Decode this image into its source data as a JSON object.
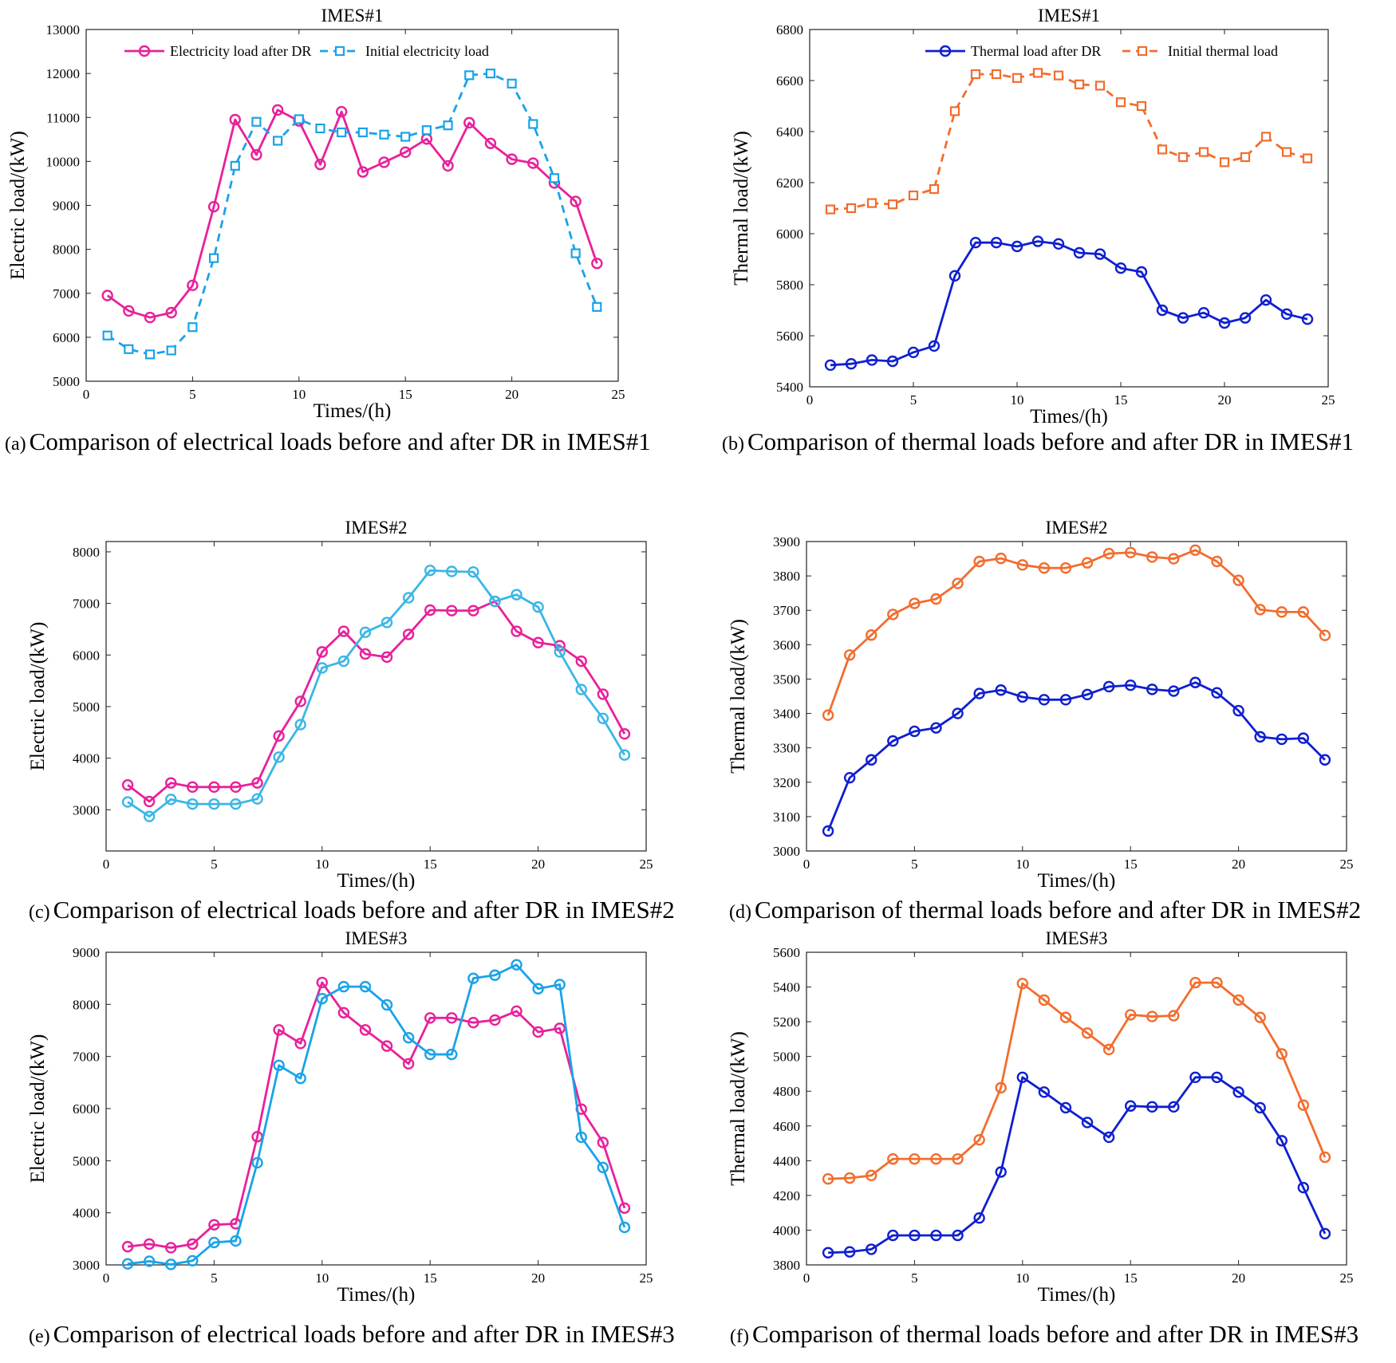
{
  "colors": {
    "pink": "#e8219a",
    "light_blue": "#1aa3e8",
    "sky_blue": "#3bb6e6",
    "navy": "#0f1fd0",
    "orange": "#f26d2e"
  },
  "chart_data": [
    {
      "id": "a",
      "type": "line",
      "title": "IMES#1",
      "xlabel": "Times/(h)",
      "ylabel": "Electric load/(kW)",
      "caption_tag": "(a)",
      "caption_text": "Comparison of electrical loads before and after DR in IMES#1",
      "xlim": [
        0,
        25
      ],
      "ylim": [
        5000,
        13000
      ],
      "xticks": [
        0,
        5,
        10,
        15,
        20,
        25
      ],
      "yticks": [
        5000,
        6000,
        7000,
        8000,
        9000,
        10000,
        11000,
        12000,
        13000
      ],
      "grid": false,
      "legend_position": "top",
      "x": [
        1,
        2,
        3,
        4,
        5,
        6,
        7,
        8,
        9,
        10,
        11,
        12,
        13,
        14,
        15,
        16,
        17,
        18,
        19,
        20,
        21,
        22,
        23,
        24
      ],
      "series": [
        {
          "name": "Electricity load after DR",
          "color": "#e8219a",
          "marker": "circle",
          "dash": false,
          "values": [
            6950,
            6600,
            6450,
            6560,
            7180,
            8970,
            10950,
            10150,
            11170,
            10920,
            9930,
            11130,
            9760,
            9980,
            10210,
            10510,
            9900,
            10880,
            10410,
            10050,
            9960,
            9510,
            9090,
            7680
          ]
        },
        {
          "name": "Initial electricity load",
          "color": "#1aa3e8",
          "marker": "square",
          "dash": true,
          "values": [
            6040,
            5730,
            5610,
            5700,
            6230,
            7800,
            9900,
            10900,
            10470,
            10960,
            10750,
            10660,
            10660,
            10610,
            10560,
            10710,
            10820,
            11960,
            12000,
            11770,
            10850,
            9620,
            7910,
            6690
          ]
        }
      ]
    },
    {
      "id": "b",
      "type": "line",
      "title": "IMES#1",
      "xlabel": "Times/(h)",
      "ylabel": "Thermal load/(kW)",
      "caption_tag": "(b)",
      "caption_text": "Comparison of thermal loads before and after DR in IMES#1",
      "xlim": [
        0,
        25
      ],
      "ylim": [
        5400,
        6800
      ],
      "xticks": [
        0,
        5,
        10,
        15,
        20,
        25
      ],
      "yticks": [
        5400,
        5600,
        5800,
        6000,
        6200,
        6400,
        6600,
        6800
      ],
      "grid": false,
      "legend_position": "top",
      "x": [
        1,
        2,
        3,
        4,
        5,
        6,
        7,
        8,
        9,
        10,
        11,
        12,
        13,
        14,
        15,
        16,
        17,
        18,
        19,
        20,
        21,
        22,
        23,
        24
      ],
      "series": [
        {
          "name": "Thermal load after DR",
          "color": "#0f1fd0",
          "marker": "circle",
          "dash": false,
          "values": [
            5485,
            5490,
            5505,
            5500,
            5535,
            5560,
            5835,
            5965,
            5965,
            5950,
            5970,
            5960,
            5925,
            5920,
            5865,
            5850,
            5700,
            5670,
            5690,
            5650,
            5670,
            5740,
            5685,
            5665
          ]
        },
        {
          "name": "Initial thermal load",
          "color": "#f26d2e",
          "marker": "square",
          "dash": true,
          "values": [
            6095,
            6100,
            6120,
            6115,
            6150,
            6175,
            6480,
            6625,
            6625,
            6610,
            6630,
            6620,
            6585,
            6580,
            6515,
            6500,
            6330,
            6300,
            6320,
            6280,
            6300,
            6380,
            6320,
            6295
          ]
        }
      ]
    },
    {
      "id": "c",
      "type": "line",
      "title": "IMES#2",
      "xlabel": "Times/(h)",
      "ylabel": "Electric load/(kW)",
      "caption_tag": "(c)",
      "caption_text": "Comparison of electrical loads before and after DR in IMES#2",
      "xlim": [
        0,
        25
      ],
      "ylim": [
        2200,
        8200
      ],
      "xticks": [
        0,
        5,
        10,
        15,
        20,
        25
      ],
      "yticks": [
        3000,
        4000,
        5000,
        6000,
        7000,
        8000
      ],
      "grid": false,
      "x": [
        1,
        2,
        3,
        4,
        5,
        6,
        7,
        8,
        9,
        10,
        11,
        12,
        13,
        14,
        15,
        16,
        17,
        18,
        19,
        20,
        21,
        22,
        23,
        24
      ],
      "series": [
        {
          "color": "#e8219a",
          "marker": "circle",
          "dash": false,
          "values": [
            3480,
            3160,
            3520,
            3440,
            3440,
            3440,
            3520,
            4430,
            5100,
            6060,
            6460,
            6020,
            5960,
            6400,
            6870,
            6860,
            6860,
            7040,
            6460,
            6240,
            6180,
            5880,
            5240,
            4470
          ]
        },
        {
          "color": "#3bb6e6",
          "marker": "circle",
          "dash": false,
          "values": [
            3150,
            2870,
            3200,
            3110,
            3110,
            3110,
            3210,
            4020,
            4650,
            5750,
            5880,
            6440,
            6630,
            7110,
            7640,
            7620,
            7610,
            7040,
            7170,
            6930,
            6060,
            5330,
            4770,
            4060
          ]
        }
      ]
    },
    {
      "id": "d",
      "type": "line",
      "title": "IMES#2",
      "xlabel": "Times/(h)",
      "ylabel": "Thermal load/(kW)",
      "caption_tag": "(d)",
      "caption_text": "Comparison of thermal loads before and after DR in IMES#2",
      "xlim": [
        0,
        25
      ],
      "ylim": [
        3000,
        3900
      ],
      "xticks": [
        0,
        5,
        10,
        15,
        20,
        25
      ],
      "yticks": [
        3000,
        3100,
        3200,
        3300,
        3400,
        3500,
        3600,
        3700,
        3800,
        3900
      ],
      "grid": false,
      "x": [
        1,
        2,
        3,
        4,
        5,
        6,
        7,
        8,
        9,
        10,
        11,
        12,
        13,
        14,
        15,
        16,
        17,
        18,
        19,
        20,
        21,
        22,
        23,
        24
      ],
      "series": [
        {
          "color": "#0f1fd0",
          "marker": "circle",
          "dash": false,
          "values": [
            3058,
            3213,
            3265,
            3320,
            3348,
            3358,
            3400,
            3458,
            3468,
            3448,
            3440,
            3440,
            3455,
            3478,
            3482,
            3470,
            3465,
            3490,
            3460,
            3408,
            3332,
            3325,
            3328,
            3265
          ]
        },
        {
          "color": "#f26d2e",
          "marker": "circle",
          "dash": false,
          "values": [
            3395,
            3570,
            3628,
            3688,
            3720,
            3733,
            3778,
            3842,
            3851,
            3832,
            3823,
            3823,
            3838,
            3865,
            3868,
            3855,
            3850,
            3875,
            3842,
            3787,
            3702,
            3695,
            3695,
            3627
          ]
        }
      ]
    },
    {
      "id": "e",
      "type": "line",
      "title": "IMES#3",
      "xlabel": "Times/(h)",
      "ylabel": "Electric load/(kW)",
      "caption_tag": "(e)",
      "caption_text": "Comparison of electrical loads before and after DR in IMES#3",
      "xlim": [
        0,
        25
      ],
      "ylim": [
        3000,
        9000
      ],
      "xticks": [
        0,
        5,
        10,
        15,
        20,
        25
      ],
      "yticks": [
        3000,
        4000,
        5000,
        6000,
        7000,
        8000,
        9000
      ],
      "grid": false,
      "x": [
        1,
        2,
        3,
        4,
        5,
        6,
        7,
        8,
        9,
        10,
        11,
        12,
        13,
        14,
        15,
        16,
        17,
        18,
        19,
        20,
        21,
        22,
        23,
        24
      ],
      "series": [
        {
          "color": "#e8219a",
          "marker": "circle",
          "dash": false,
          "values": [
            3350,
            3400,
            3330,
            3400,
            3770,
            3790,
            5460,
            7510,
            7250,
            8420,
            7840,
            7510,
            7200,
            6860,
            7740,
            7740,
            7650,
            7700,
            7870,
            7470,
            7540,
            5990,
            5350,
            4090
          ]
        },
        {
          "color": "#1aa3e8",
          "marker": "circle",
          "dash": false,
          "values": [
            3020,
            3070,
            3010,
            3080,
            3430,
            3460,
            4960,
            6830,
            6580,
            8110,
            8340,
            8340,
            7990,
            7360,
            7040,
            7040,
            8500,
            8560,
            8760,
            8300,
            8380,
            5450,
            4870,
            3720
          ]
        }
      ]
    },
    {
      "id": "f",
      "type": "line",
      "title": "IMES#3",
      "xlabel": "Times/(h)",
      "ylabel": "Thermal load/(kW)",
      "caption_tag": "(f)",
      "caption_text": "Comparison of thermal loads before and after DR in IMES#3",
      "xlim": [
        0,
        25
      ],
      "ylim": [
        3800,
        5600
      ],
      "xticks": [
        0,
        5,
        10,
        15,
        20,
        25
      ],
      "yticks": [
        3800,
        4000,
        4200,
        4400,
        4600,
        4800,
        5000,
        5200,
        5400,
        5600
      ],
      "grid": false,
      "x": [
        1,
        2,
        3,
        4,
        5,
        6,
        7,
        8,
        9,
        10,
        11,
        12,
        13,
        14,
        15,
        16,
        17,
        18,
        19,
        20,
        21,
        22,
        23,
        24
      ],
      "series": [
        {
          "color": "#0f1fd0",
          "marker": "circle",
          "dash": false,
          "values": [
            3870,
            3875,
            3890,
            3970,
            3970,
            3970,
            3970,
            4070,
            4335,
            4880,
            4795,
            4705,
            4620,
            4535,
            4715,
            4710,
            4710,
            4880,
            4880,
            4795,
            4705,
            4515,
            4245,
            3980
          ]
        },
        {
          "color": "#f26d2e",
          "marker": "circle",
          "dash": false,
          "values": [
            4295,
            4300,
            4315,
            4410,
            4410,
            4410,
            4410,
            4520,
            4820,
            5420,
            5325,
            5225,
            5135,
            5040,
            5240,
            5230,
            5235,
            5425,
            5425,
            5325,
            5225,
            5015,
            4720,
            4420
          ]
        }
      ]
    }
  ]
}
